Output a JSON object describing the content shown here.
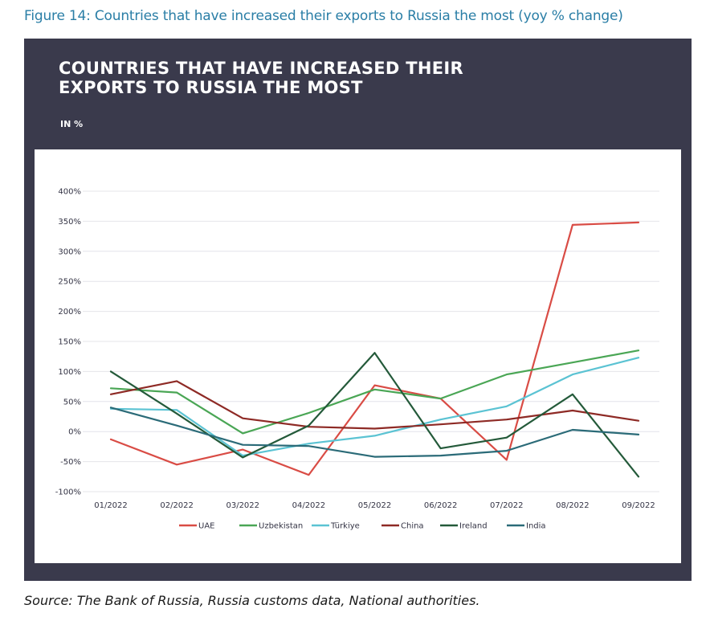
{
  "figure_caption": "Figure 14: Countries that have increased their exports to Russia the most (yoy % change)",
  "source_text": "Source: The Bank of Russia, Russia customs data, National authorities.",
  "chart_data": {
    "type": "line",
    "title": "COUNTRIES THAT HAVE INCREASED THEIR EXPORTS TO RUSSIA THE MOST",
    "subtitle": "IN %",
    "xlabel": "",
    "ylabel": "",
    "categories": [
      "01/2022",
      "02/2022",
      "03/2022",
      "04/2022",
      "05/2022",
      "06/2022",
      "07/2022",
      "08/2022",
      "09/2022"
    ],
    "y_ticks": [
      "400%",
      "350%",
      "300%",
      "250%",
      "200%",
      "150%",
      "100%",
      "50%",
      "0%",
      "-50%",
      "-100%"
    ],
    "ylim": [
      -100,
      400
    ],
    "grid": true,
    "legend_position": "bottom",
    "series": [
      {
        "name": "UAE",
        "color": "#d94c45",
        "values": [
          -13,
          -55,
          -30,
          -72,
          77,
          55,
          -47,
          344,
          348
        ]
      },
      {
        "name": "Uzbekistan",
        "color": "#4aa655",
        "values": [
          72,
          65,
          -3,
          31,
          70,
          55,
          95,
          115,
          135
        ]
      },
      {
        "name": "Türkiye",
        "color": "#5bc3d3",
        "values": [
          38,
          36,
          -40,
          -20,
          -7,
          20,
          42,
          95,
          123
        ]
      },
      {
        "name": "China",
        "color": "#8e2a25",
        "values": [
          62,
          84,
          22,
          8,
          5,
          12,
          20,
          35,
          18
        ]
      },
      {
        "name": "Ireland",
        "color": "#245a3a",
        "values": [
          100,
          30,
          -43,
          10,
          131,
          -28,
          -10,
          62,
          -75
        ]
      },
      {
        "name": "India",
        "color": "#2b6b78",
        "values": [
          40,
          10,
          -22,
          -24,
          -42,
          -40,
          -32,
          3,
          -5
        ]
      }
    ]
  }
}
